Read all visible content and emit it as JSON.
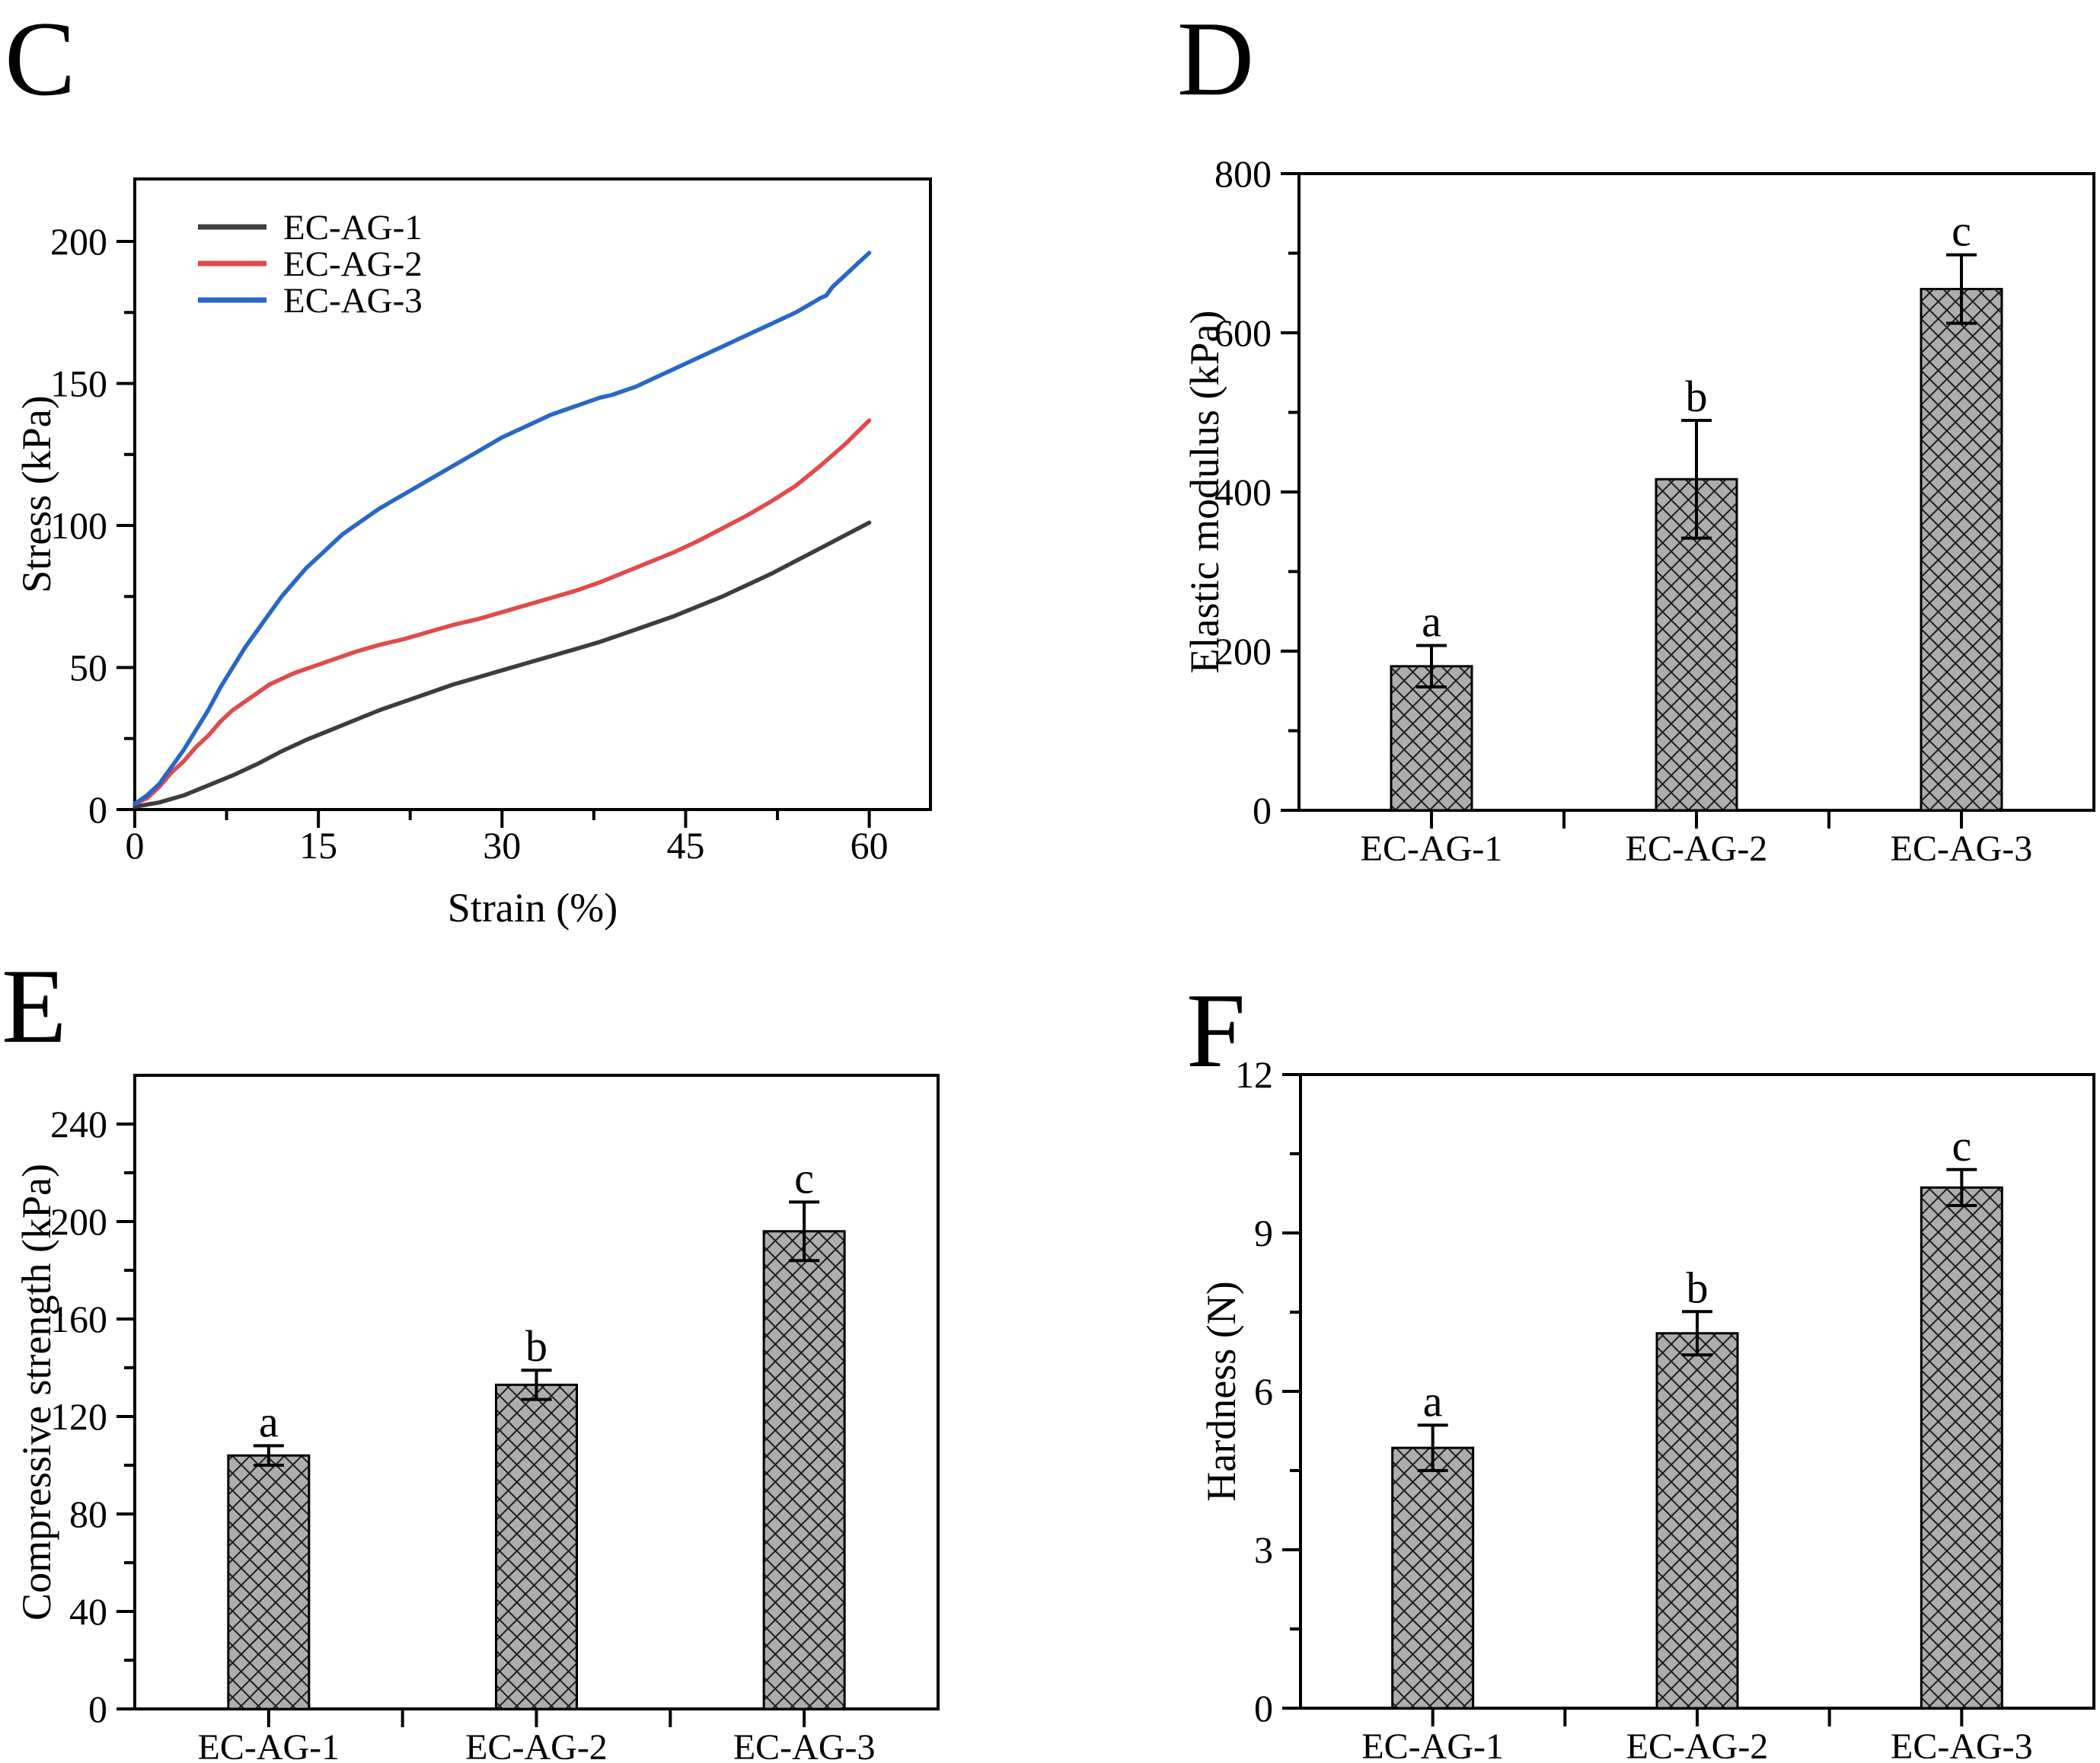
{
  "panel_letters": {
    "c": "C",
    "d": "D",
    "e": "E",
    "f": "F"
  },
  "chart_data": [
    {
      "id": "panelC",
      "type": "line",
      "panel_label": "C",
      "xlabel": "Strain (%)",
      "ylabel": "Stress (kPa)",
      "xlim": [
        0,
        65
      ],
      "ylim": [
        0,
        222
      ],
      "xticks_major": [
        0,
        15,
        30,
        45,
        60
      ],
      "xticks_minor": [
        7.5,
        22.5,
        37.5,
        52.5
      ],
      "yticks_major": [
        0,
        50,
        100,
        150,
        200
      ],
      "yticks_minor": [
        25,
        75,
        125,
        175
      ],
      "grid": "off",
      "legend_position": "top-left",
      "series": [
        {
          "name": "EC-AG-1",
          "color": "#3d3d3d",
          "points": [
            [
              0,
              1
            ],
            [
              2,
              2.5
            ],
            [
              4,
              5
            ],
            [
              6,
              8.5
            ],
            [
              8,
              12
            ],
            [
              10,
              16
            ],
            [
              12,
              20.5
            ],
            [
              14,
              24.5
            ],
            [
              16,
              28
            ],
            [
              18,
              31.5
            ],
            [
              20,
              35
            ],
            [
              22,
              38
            ],
            [
              24,
              41
            ],
            [
              26,
              44
            ],
            [
              28,
              46.5
            ],
            [
              30,
              49
            ],
            [
              32,
              51.5
            ],
            [
              34,
              54
            ],
            [
              36,
              56.5
            ],
            [
              38,
              59
            ],
            [
              40,
              62
            ],
            [
              42,
              65
            ],
            [
              44,
              68
            ],
            [
              46,
              71.5
            ],
            [
              48,
              75
            ],
            [
              50,
              79
            ],
            [
              52,
              83
            ],
            [
              54,
              87.5
            ],
            [
              56,
              92
            ],
            [
              58,
              96.5
            ],
            [
              60,
              101
            ]
          ]
        },
        {
          "name": "EC-AG-2",
          "color": "#e04b4c",
          "points": [
            [
              0,
              2
            ],
            [
              1,
              4
            ],
            [
              2,
              8
            ],
            [
              3,
              13
            ],
            [
              4,
              17
            ],
            [
              5,
              22
            ],
            [
              6,
              26
            ],
            [
              7,
              31
            ],
            [
              8,
              35
            ],
            [
              9,
              38
            ],
            [
              10,
              41
            ],
            [
              11,
              44
            ],
            [
              12,
              46
            ],
            [
              13,
              48
            ],
            [
              14,
              49.5
            ],
            [
              15,
              51
            ],
            [
              16,
              52.5
            ],
            [
              17,
              54
            ],
            [
              18,
              55.5
            ],
            [
              20,
              58
            ],
            [
              22,
              60
            ],
            [
              24,
              62.5
            ],
            [
              26,
              65
            ],
            [
              28,
              67
            ],
            [
              30,
              69.5
            ],
            [
              32,
              72
            ],
            [
              34,
              74.5
            ],
            [
              36,
              77
            ],
            [
              38,
              80
            ],
            [
              40,
              83.5
            ],
            [
              42,
              87
            ],
            [
              44,
              90.5
            ],
            [
              46,
              94.5
            ],
            [
              48,
              99
            ],
            [
              50,
              103.5
            ],
            [
              52,
              108.5
            ],
            [
              54,
              114
            ],
            [
              56,
              121
            ],
            [
              58,
              128.5
            ],
            [
              60,
              137
            ]
          ]
        },
        {
          "name": "EC-AG-3",
          "color": "#2a67c6",
          "points": [
            [
              0,
              2
            ],
            [
              1,
              5
            ],
            [
              2,
              9
            ],
            [
              3,
              15
            ],
            [
              4,
              21
            ],
            [
              5,
              28
            ],
            [
              6,
              35
            ],
            [
              7,
              43
            ],
            [
              8,
              50
            ],
            [
              9,
              57
            ],
            [
              10,
              63
            ],
            [
              11,
              69
            ],
            [
              12,
              75
            ],
            [
              13,
              80
            ],
            [
              14,
              85
            ],
            [
              15,
              89
            ],
            [
              16,
              93
            ],
            [
              17,
              97
            ],
            [
              18,
              100
            ],
            [
              19,
              103
            ],
            [
              20,
              106
            ],
            [
              22,
              111
            ],
            [
              24,
              116
            ],
            [
              26,
              121
            ],
            [
              28,
              126
            ],
            [
              30,
              131
            ],
            [
              32,
              135
            ],
            [
              34,
              139
            ],
            [
              36,
              142
            ],
            [
              37,
              143.5
            ],
            [
              38,
              145
            ],
            [
              39,
              146
            ],
            [
              40,
              147.5
            ],
            [
              41,
              149
            ],
            [
              42,
              151
            ],
            [
              44,
              155
            ],
            [
              46,
              159
            ],
            [
              48,
              163
            ],
            [
              50,
              167
            ],
            [
              52,
              171
            ],
            [
              54,
              175
            ],
            [
              55,
              177.5
            ],
            [
              56,
              180
            ],
            [
              56.5,
              181
            ],
            [
              57,
              184
            ],
            [
              58,
              188
            ],
            [
              59,
              192
            ],
            [
              60,
              196
            ]
          ]
        }
      ]
    },
    {
      "id": "panelD",
      "type": "bar",
      "panel_label": "D",
      "xlabel": "",
      "ylabel": "Elastic modulus (kPa)",
      "categories": [
        "EC-AG-1",
        "EC-AG-2",
        "EC-AG-3"
      ],
      "values": [
        181,
        416,
        655
      ],
      "errors": [
        26,
        74,
        43
      ],
      "sig_letters": [
        "a",
        "b",
        "c"
      ],
      "ylim": [
        0,
        800
      ],
      "yticks_major": [
        0,
        200,
        400,
        600,
        800
      ],
      "yticks_minor": [
        100,
        300,
        500,
        700
      ],
      "grid": "off",
      "bar_fill": "#adadad",
      "bar_edge": "#000000",
      "hatch": "diagonal-crosshatch"
    },
    {
      "id": "panelE",
      "type": "bar",
      "panel_label": "E",
      "xlabel": "",
      "ylabel": "Compressive strength (kPa)",
      "categories": [
        "EC-AG-1",
        "EC-AG-2",
        "EC-AG-3"
      ],
      "values": [
        104,
        133,
        196
      ],
      "errors": [
        4,
        6,
        12
      ],
      "sig_letters": [
        "a",
        "b",
        "c"
      ],
      "ylim": [
        0,
        260
      ],
      "yticks_major": [
        0,
        40,
        80,
        120,
        160,
        200,
        240
      ],
      "yticks_minor": [
        20,
        60,
        100,
        140,
        180,
        220
      ],
      "grid": "off",
      "bar_fill": "#adadad",
      "bar_edge": "#000000",
      "hatch": "diagonal-crosshatch"
    },
    {
      "id": "panelF",
      "type": "bar",
      "panel_label": "F",
      "xlabel": "",
      "ylabel": "Hardness (N)",
      "categories": [
        "EC-AG-1",
        "EC-AG-2",
        "EC-AG-3"
      ],
      "values": [
        4.93,
        7.1,
        9.86
      ],
      "errors": [
        0.43,
        0.41,
        0.34
      ],
      "sig_letters": [
        "a",
        "b",
        "c"
      ],
      "ylim": [
        0,
        12
      ],
      "yticks_major": [
        0,
        3,
        6,
        9,
        12
      ],
      "yticks_minor": [
        1.5,
        4.5,
        7.5,
        10.5
      ],
      "grid": "off",
      "bar_fill": "#adadad",
      "bar_edge": "#000000",
      "hatch": "diagonal-crosshatch"
    }
  ]
}
